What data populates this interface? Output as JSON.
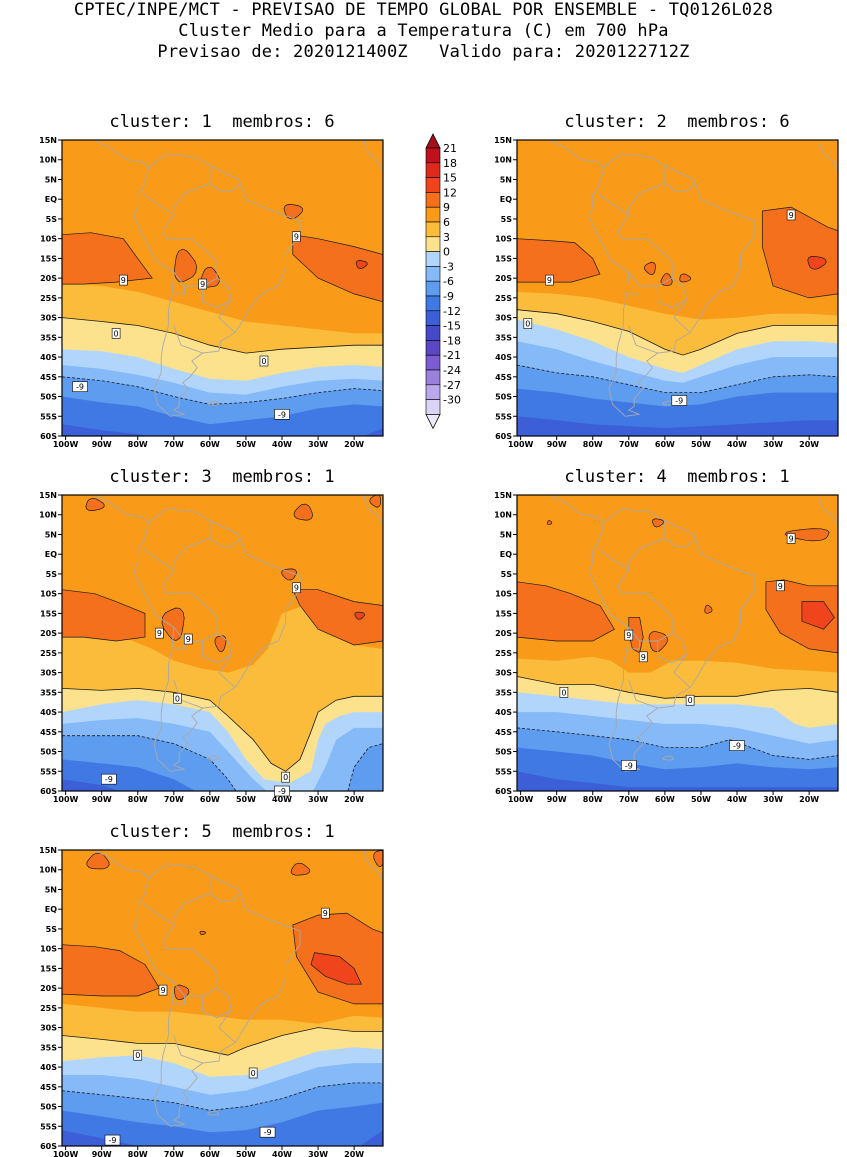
{
  "header": {
    "line1": "CPTEC/INPE/MCT - PREVISAO DE TEMPO GLOBAL POR ENSEMBLE - TQ0126L028",
    "line2": "Cluster Medio para a Temperatura (C) em 700 hPa",
    "line3": "Previsao de: 2020121400Z   Valido para: 2020122712Z"
  },
  "panels": [
    {
      "title": "cluster: 1  membros: 6",
      "labels": [
        {
          "v": "9",
          "lon": -62,
          "lat": -21.5
        },
        {
          "v": "9",
          "lon": -84,
          "lat": -20.5
        },
        {
          "v": "9",
          "lon": -36,
          "lat": -9.5
        },
        {
          "v": "0",
          "lon": -86,
          "lat": -34
        },
        {
          "v": "0",
          "lon": -45,
          "lat": -41
        },
        {
          "v": "-9",
          "lon": -96,
          "lat": -47.5
        },
        {
          "v": "-9",
          "lon": -40,
          "lat": -54.5
        }
      ]
    },
    {
      "title": "cluster: 2  membros: 6",
      "labels": [
        {
          "v": "9",
          "lon": -25,
          "lat": -4
        },
        {
          "v": "9",
          "lon": -92,
          "lat": -20.5
        },
        {
          "v": "0",
          "lon": -98,
          "lat": -31.5
        },
        {
          "v": "-9",
          "lon": -56,
          "lat": -51
        }
      ]
    },
    {
      "title": "cluster: 3  membros: 1",
      "labels": [
        {
          "v": "9",
          "lon": -36,
          "lat": -8.5
        },
        {
          "v": "9",
          "lon": -74,
          "lat": -20
        },
        {
          "v": "9",
          "lon": -66,
          "lat": -21.5
        },
        {
          "v": "0",
          "lon": -69,
          "lat": -36.5
        },
        {
          "v": "0",
          "lon": -39,
          "lat": -56.5
        },
        {
          "v": "-9",
          "lon": -88,
          "lat": -57
        },
        {
          "v": "-9",
          "lon": -40,
          "lat": -60
        }
      ]
    },
    {
      "title": "cluster: 4  membros: 1",
      "labels": [
        {
          "v": "9",
          "lon": -25,
          "lat": 4
        },
        {
          "v": "9",
          "lon": -28,
          "lat": -8
        },
        {
          "v": "9",
          "lon": -70,
          "lat": -20.5
        },
        {
          "v": "9",
          "lon": -66,
          "lat": -26
        },
        {
          "v": "0",
          "lon": -88,
          "lat": -35
        },
        {
          "v": "0",
          "lon": -53,
          "lat": -37
        },
        {
          "v": "-9",
          "lon": -40,
          "lat": -48.5
        },
        {
          "v": "-9",
          "lon": -70,
          "lat": -53.5
        }
      ]
    },
    {
      "title": "cluster: 5  membros: 1",
      "labels": [
        {
          "v": "9",
          "lon": -28,
          "lat": -1
        },
        {
          "v": "9",
          "lon": -73,
          "lat": -20.5
        },
        {
          "v": "0",
          "lon": -80,
          "lat": -37
        },
        {
          "v": "0",
          "lon": -48,
          "lat": -41.5
        },
        {
          "v": "-9",
          "lon": -44,
          "lat": -56.5
        },
        {
          "v": "-9",
          "lon": -87,
          "lat": -58.5
        }
      ]
    }
  ],
  "axes": {
    "lat_ticks": [
      "15N",
      "10N",
      "5N",
      "EQ",
      "5S",
      "10S",
      "15S",
      "20S",
      "25S",
      "30S",
      "35S",
      "40S",
      "45S",
      "50S",
      "55S",
      "60S"
    ],
    "lon_ticks": [
      "100W",
      "90W",
      "80W",
      "70W",
      "60W",
      "50W",
      "40W",
      "30W",
      "20W"
    ],
    "lat_values": [
      15,
      10,
      5,
      0,
      -5,
      -10,
      -15,
      -20,
      -25,
      -30,
      -35,
      -40,
      -45,
      -50,
      -55,
      -60
    ],
    "lon_values": [
      -100,
      -90,
      -80,
      -70,
      -60,
      -50,
      -40,
      -30,
      -20
    ],
    "lon_range": [
      -101,
      -12
    ],
    "lat_range": [
      -60,
      15
    ]
  },
  "colorbar": {
    "levels": [
      "21",
      "18",
      "15",
      "12",
      "9",
      "6",
      "3",
      "0",
      "-3",
      "-6",
      "-9",
      "-12",
      "-15",
      "-18",
      "-21",
      "-24",
      "-27",
      "-30"
    ],
    "colors": [
      "#c0111c",
      "#de2a1b",
      "#f0451c",
      "#f4701c",
      "#f99b18",
      "#fbbc3c",
      "#fde28d",
      "#b2d6fb",
      "#85b9f7",
      "#5e9cef",
      "#4179e4",
      "#3c5fd7",
      "#4549c8",
      "#5b46c3",
      "#7b5cd1",
      "#9b81de",
      "#bba8ec",
      "#dcd4f6"
    ],
    "top_color": "#a50e1a",
    "bottom_color": "#ede9f8"
  },
  "colors": {
    "land_border": "#a9a9a9",
    "contour": "#1a1a1a"
  }
}
